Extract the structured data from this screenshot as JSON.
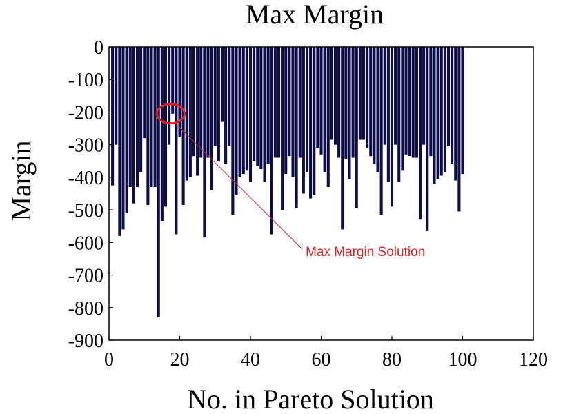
{
  "chart_data": {
    "type": "bar",
    "title": "Max Margin",
    "xlabel": "No. in Pareto Solution",
    "ylabel": "Margin",
    "xlim": [
      0,
      120
    ],
    "ylim": [
      -900,
      0
    ],
    "xticks": [
      0,
      20,
      40,
      60,
      80,
      100,
      120
    ],
    "yticks": [
      0,
      -100,
      -200,
      -300,
      -400,
      -500,
      -600,
      -700,
      -800,
      -900
    ],
    "grid": false,
    "bar_color": "#0d0d4a",
    "x": [
      1,
      2,
      3,
      4,
      5,
      6,
      7,
      8,
      9,
      10,
      11,
      12,
      13,
      14,
      15,
      16,
      17,
      18,
      19,
      20,
      21,
      22,
      23,
      24,
      25,
      26,
      27,
      28,
      29,
      30,
      31,
      32,
      33,
      34,
      35,
      36,
      37,
      38,
      39,
      40,
      41,
      42,
      43,
      44,
      45,
      46,
      47,
      48,
      49,
      50,
      51,
      52,
      53,
      54,
      55,
      56,
      57,
      58,
      59,
      60,
      61,
      62,
      63,
      64,
      65,
      66,
      67,
      68,
      69,
      70,
      71,
      72,
      73,
      74,
      75,
      76,
      77,
      78,
      79,
      80,
      81,
      82,
      83,
      84,
      85,
      86,
      87,
      88,
      89,
      90,
      91,
      92,
      93,
      94,
      95,
      96,
      97,
      98,
      99,
      100
    ],
    "values": [
      -425,
      -300,
      -580,
      -560,
      -510,
      -430,
      -480,
      -430,
      -385,
      -280,
      -485,
      -430,
      -430,
      -830,
      -535,
      -490,
      -300,
      -205,
      -575,
      -275,
      -485,
      -410,
      -400,
      -335,
      -395,
      -340,
      -585,
      -340,
      -440,
      -305,
      -350,
      -230,
      -360,
      -305,
      -515,
      -455,
      -400,
      -390,
      -380,
      -415,
      -350,
      -365,
      -375,
      -415,
      -360,
      -575,
      -340,
      -340,
      -500,
      -390,
      -335,
      -400,
      -495,
      -340,
      -450,
      -385,
      -465,
      -455,
      -310,
      -330,
      -385,
      -430,
      -285,
      -300,
      -340,
      -560,
      -345,
      -405,
      -340,
      -495,
      -285,
      -285,
      -310,
      -335,
      -360,
      -385,
      -515,
      -300,
      -415,
      -490,
      -300,
      -415,
      -380,
      -330,
      -335,
      -340,
      -340,
      -530,
      -300,
      -565,
      -335,
      -420,
      -405,
      -395,
      -385,
      -305,
      -360,
      -410,
      -505,
      -390
    ],
    "annotations": [
      {
        "text": "Max Margin Solution",
        "x": 18,
        "y": -205,
        "color": "#e02020"
      }
    ]
  }
}
